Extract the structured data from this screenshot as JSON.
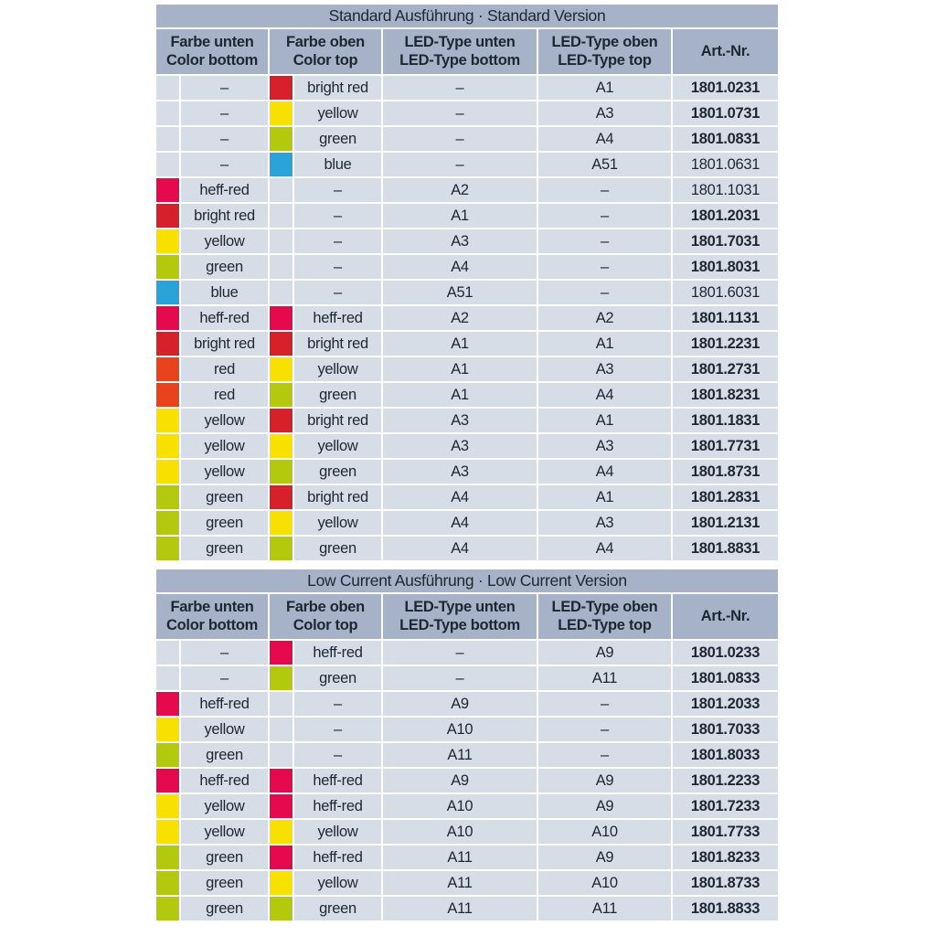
{
  "theme": {
    "header_bg": "#a6b2c8",
    "row_bg": "#d7dde6",
    "grid_color": "#ffffff",
    "text_color": "#1d2733"
  },
  "swatch_colors": {
    "heff-red": "#e40a4d",
    "bright-red": "#d6202a",
    "red": "#e8431c",
    "yellow": "#f8e000",
    "green": "#b3c90e",
    "blue": "#2aa3d9"
  },
  "columns": {
    "color_bottom": [
      "Farbe unten",
      "Color bottom"
    ],
    "color_top": [
      "Farbe oben",
      "Color top"
    ],
    "led_bottom": [
      "LED-Type unten",
      "LED-Type bottom"
    ],
    "led_top": [
      "LED-Type oben",
      "LED-Type top"
    ],
    "art_nr": "Art.-Nr."
  },
  "sections": [
    {
      "title": "Standard Ausführung · Standard Version",
      "rows": [
        {
          "color_bottom": "–",
          "color_bottom_swatch": null,
          "color_top": "bright red",
          "color_top_swatch": "bright-red",
          "led_bottom": "–",
          "led_top": "A1",
          "art": "1801.0231",
          "bold": true
        },
        {
          "color_bottom": "–",
          "color_bottom_swatch": null,
          "color_top": "yellow",
          "color_top_swatch": "yellow",
          "led_bottom": "–",
          "led_top": "A3",
          "art": "1801.0731",
          "bold": true
        },
        {
          "color_bottom": "–",
          "color_bottom_swatch": null,
          "color_top": "green",
          "color_top_swatch": "green",
          "led_bottom": "–",
          "led_top": "A4",
          "art": "1801.0831",
          "bold": true
        },
        {
          "color_bottom": "–",
          "color_bottom_swatch": null,
          "color_top": "blue",
          "color_top_swatch": "blue",
          "led_bottom": "–",
          "led_top": "A51",
          "art": "1801.0631",
          "bold": false
        },
        {
          "color_bottom": "heff-red",
          "color_bottom_swatch": "heff-red",
          "color_top": "–",
          "color_top_swatch": null,
          "led_bottom": "A2",
          "led_top": "–",
          "art": "1801.1031",
          "bold": false
        },
        {
          "color_bottom": "bright red",
          "color_bottom_swatch": "bright-red",
          "color_top": "–",
          "color_top_swatch": null,
          "led_bottom": "A1",
          "led_top": "–",
          "art": "1801.2031",
          "bold": true
        },
        {
          "color_bottom": "yellow",
          "color_bottom_swatch": "yellow",
          "color_top": "–",
          "color_top_swatch": null,
          "led_bottom": "A3",
          "led_top": "–",
          "art": "1801.7031",
          "bold": true
        },
        {
          "color_bottom": "green",
          "color_bottom_swatch": "green",
          "color_top": "–",
          "color_top_swatch": null,
          "led_bottom": "A4",
          "led_top": "–",
          "art": "1801.8031",
          "bold": true
        },
        {
          "color_bottom": "blue",
          "color_bottom_swatch": "blue",
          "color_top": "–",
          "color_top_swatch": null,
          "led_bottom": "A51",
          "led_top": "–",
          "art": "1801.6031",
          "bold": false
        },
        {
          "color_bottom": "heff-red",
          "color_bottom_swatch": "heff-red",
          "color_top": "heff-red",
          "color_top_swatch": "heff-red",
          "led_bottom": "A2",
          "led_top": "A2",
          "art": "1801.1131",
          "bold": true
        },
        {
          "color_bottom": "bright red",
          "color_bottom_swatch": "bright-red",
          "color_top": "bright red",
          "color_top_swatch": "bright-red",
          "led_bottom": "A1",
          "led_top": "A1",
          "art": "1801.2231",
          "bold": true
        },
        {
          "color_bottom": "red",
          "color_bottom_swatch": "red",
          "color_top": "yellow",
          "color_top_swatch": "yellow",
          "led_bottom": "A1",
          "led_top": "A3",
          "art": "1801.2731",
          "bold": true
        },
        {
          "color_bottom": "red",
          "color_bottom_swatch": "red",
          "color_top": "green",
          "color_top_swatch": "green",
          "led_bottom": "A1",
          "led_top": "A4",
          "art": "1801.8231",
          "bold": true
        },
        {
          "color_bottom": "yellow",
          "color_bottom_swatch": "yellow",
          "color_top": "bright red",
          "color_top_swatch": "bright-red",
          "led_bottom": "A3",
          "led_top": "A1",
          "art": "1801.1831",
          "bold": true
        },
        {
          "color_bottom": "yellow",
          "color_bottom_swatch": "yellow",
          "color_top": "yellow",
          "color_top_swatch": "yellow",
          "led_bottom": "A3",
          "led_top": "A3",
          "art": "1801.7731",
          "bold": true
        },
        {
          "color_bottom": "yellow",
          "color_bottom_swatch": "yellow",
          "color_top": "green",
          "color_top_swatch": "green",
          "led_bottom": "A3",
          "led_top": "A4",
          "art": "1801.8731",
          "bold": true
        },
        {
          "color_bottom": "green",
          "color_bottom_swatch": "green",
          "color_top": "bright red",
          "color_top_swatch": "bright-red",
          "led_bottom": "A4",
          "led_top": "A1",
          "art": "1801.2831",
          "bold": true
        },
        {
          "color_bottom": "green",
          "color_bottom_swatch": "green",
          "color_top": "yellow",
          "color_top_swatch": "yellow",
          "led_bottom": "A4",
          "led_top": "A3",
          "art": "1801.2131",
          "bold": true
        },
        {
          "color_bottom": "green",
          "color_bottom_swatch": "green",
          "color_top": "green",
          "color_top_swatch": "green",
          "led_bottom": "A4",
          "led_top": "A4",
          "art": "1801.8831",
          "bold": true
        }
      ]
    },
    {
      "title": "Low Current Ausführung · Low Current Version",
      "rows": [
        {
          "color_bottom": "–",
          "color_bottom_swatch": null,
          "color_top": "heff-red",
          "color_top_swatch": "heff-red",
          "led_bottom": "–",
          "led_top": "A9",
          "art": "1801.0233",
          "bold": true
        },
        {
          "color_bottom": "–",
          "color_bottom_swatch": null,
          "color_top": "green",
          "color_top_swatch": "green",
          "led_bottom": "–",
          "led_top": "A11",
          "art": "1801.0833",
          "bold": true
        },
        {
          "color_bottom": "heff-red",
          "color_bottom_swatch": "heff-red",
          "color_top": "–",
          "color_top_swatch": null,
          "led_bottom": "A9",
          "led_top": "–",
          "art": "1801.2033",
          "bold": true
        },
        {
          "color_bottom": "yellow",
          "color_bottom_swatch": "yellow",
          "color_top": "–",
          "color_top_swatch": null,
          "led_bottom": "A10",
          "led_top": "–",
          "art": "1801.7033",
          "bold": true
        },
        {
          "color_bottom": "green",
          "color_bottom_swatch": "green",
          "color_top": "–",
          "color_top_swatch": null,
          "led_bottom": "A11",
          "led_top": "–",
          "art": "1801.8033",
          "bold": true
        },
        {
          "color_bottom": "heff-red",
          "color_bottom_swatch": "heff-red",
          "color_top": "heff-red",
          "color_top_swatch": "heff-red",
          "led_bottom": "A9",
          "led_top": "A9",
          "art": "1801.2233",
          "bold": true
        },
        {
          "color_bottom": "yellow",
          "color_bottom_swatch": "yellow",
          "color_top": "heff-red",
          "color_top_swatch": "heff-red",
          "led_bottom": "A10",
          "led_top": "A9",
          "art": "1801.7233",
          "bold": true
        },
        {
          "color_bottom": "yellow",
          "color_bottom_swatch": "yellow",
          "color_top": "yellow",
          "color_top_swatch": "yellow",
          "led_bottom": "A10",
          "led_top": "A10",
          "art": "1801.7733",
          "bold": true
        },
        {
          "color_bottom": "green",
          "color_bottom_swatch": "green",
          "color_top": "heff-red",
          "color_top_swatch": "heff-red",
          "led_bottom": "A11",
          "led_top": "A9",
          "art": "1801.8233",
          "bold": true
        },
        {
          "color_bottom": "green",
          "color_bottom_swatch": "green",
          "color_top": "yellow",
          "color_top_swatch": "yellow",
          "led_bottom": "A11",
          "led_top": "A10",
          "art": "1801.8733",
          "bold": true
        },
        {
          "color_bottom": "green",
          "color_bottom_swatch": "green",
          "color_top": "green",
          "color_top_swatch": "green",
          "led_bottom": "A11",
          "led_top": "A11",
          "art": "1801.8833",
          "bold": true
        }
      ]
    }
  ]
}
